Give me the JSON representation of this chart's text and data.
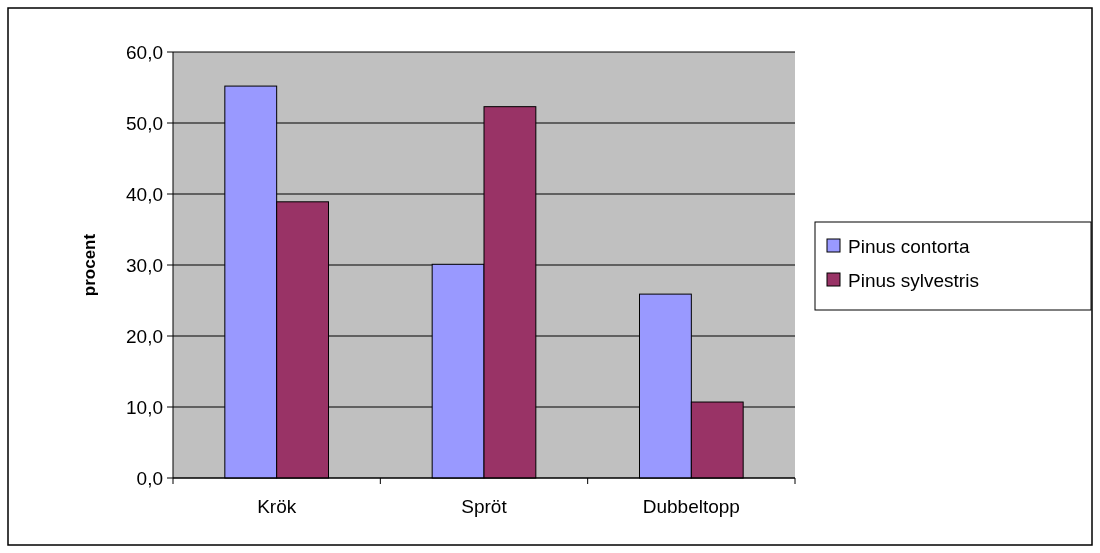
{
  "chart_data": {
    "type": "bar",
    "ylabel": "procent",
    "categories": [
      "Krök",
      "Spröt",
      "Dubbeltopp"
    ],
    "series": [
      {
        "name": "Pinus contorta",
        "color": "#9999ff",
        "values": [
          55.2,
          30.1,
          25.9
        ]
      },
      {
        "name": "Pinus sylvestris",
        "color": "#993366",
        "values": [
          38.9,
          52.3,
          10.7
        ]
      }
    ],
    "ylim": [
      0,
      60
    ],
    "yticks": [
      {
        "value": 0,
        "label": "0,0"
      },
      {
        "value": 10,
        "label": "10,0"
      },
      {
        "value": 20,
        "label": "20,0"
      },
      {
        "value": 30,
        "label": "30,0"
      },
      {
        "value": 40,
        "label": "40,0"
      },
      {
        "value": 50,
        "label": "50,0"
      },
      {
        "value": 60,
        "label": "60,0"
      }
    ],
    "grid": "y",
    "legend": "right"
  }
}
